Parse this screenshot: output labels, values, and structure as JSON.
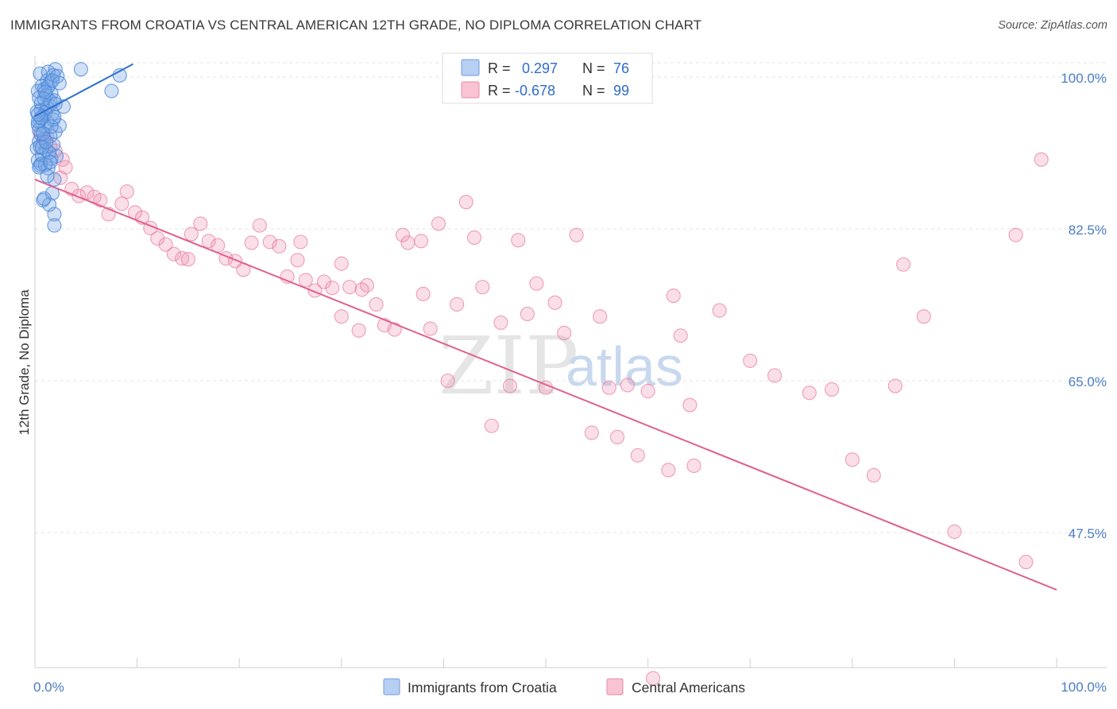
{
  "header": {
    "title": "IMMIGRANTS FROM CROATIA VS CENTRAL AMERICAN 12TH GRADE, NO DIPLOMA CORRELATION CHART",
    "source": "Source: ZipAtlas.com"
  },
  "watermark": {
    "zip": "ZIP",
    "atlas": "atlas"
  },
  "legend_top": {
    "rows": [
      {
        "r_label": "R =",
        "r_value": "0.297",
        "n_label": "N =",
        "n_value": "76"
      },
      {
        "r_label": "R =",
        "r_value": "-0.678",
        "n_label": "N =",
        "n_value": "99"
      }
    ]
  },
  "chart_data": {
    "type": "scatter",
    "ylabel": "12th Grade, No Diploma",
    "x_tick_labels": [
      "0.0%",
      "100.0%"
    ],
    "y_tick_labels": [
      "100.0%",
      "82.5%",
      "65.0%",
      "47.5%"
    ],
    "y_ticks": [
      100.0,
      82.5,
      65.0,
      47.5
    ],
    "xlim": [
      0,
      100
    ],
    "ylim": [
      30,
      100
    ],
    "grid": true,
    "legend_position": "bottom-center",
    "colors": {
      "croatia": "#4a86d8",
      "central": "#e9779e",
      "croatia_fill": "rgba(120,165,230,0.35)",
      "central_fill": "rgba(240,150,180,0.30)"
    },
    "series": [
      {
        "name": "Immigrants from Croatia",
        "r": 0.297,
        "n": 76,
        "trend": {
          "x": [
            0,
            9.6
          ],
          "y": [
            95.5,
            101.5
          ]
        },
        "points": [
          [
            0.5,
            100.4
          ],
          [
            1.3,
            100.6
          ],
          [
            2.0,
            100.9
          ],
          [
            4.5,
            100.9
          ],
          [
            1.2,
            99.6
          ],
          [
            1.8,
            100.2
          ],
          [
            0.7,
            99.0
          ],
          [
            1.5,
            99.3
          ],
          [
            2.2,
            100.1
          ],
          [
            0.3,
            98.4
          ],
          [
            0.9,
            98.6
          ],
          [
            1.6,
            98.1
          ],
          [
            0.4,
            97.6
          ],
          [
            1.1,
            97.9
          ],
          [
            1.9,
            97.3
          ],
          [
            2.8,
            96.6
          ],
          [
            0.6,
            96.2
          ],
          [
            1.4,
            96.7
          ],
          [
            0.2,
            96.0
          ],
          [
            0.8,
            95.5
          ],
          [
            1.7,
            95.8
          ],
          [
            0.5,
            95.0
          ],
          [
            1.2,
            94.8
          ],
          [
            0.3,
            94.5
          ],
          [
            1.0,
            94.2
          ],
          [
            2.0,
            93.7
          ],
          [
            0.6,
            93.4
          ],
          [
            1.5,
            93.2
          ],
          [
            0.4,
            92.6
          ],
          [
            0.9,
            92.9
          ],
          [
            1.8,
            92.2
          ],
          [
            0.2,
            91.8
          ],
          [
            1.1,
            91.6
          ],
          [
            0.7,
            91.0
          ],
          [
            1.6,
            90.6
          ],
          [
            0.3,
            90.4
          ],
          [
            2.1,
            90.9
          ],
          [
            0.5,
            89.8
          ],
          [
            1.3,
            89.5
          ],
          [
            8.3,
            100.2
          ],
          [
            1.9,
            88.2
          ],
          [
            1.7,
            86.6
          ],
          [
            0.8,
            85.8
          ],
          [
            1.4,
            85.3
          ],
          [
            1.9,
            84.2
          ],
          [
            1.9,
            82.9
          ],
          [
            7.5,
            98.4
          ],
          [
            0.6,
            97.0
          ],
          [
            1.0,
            95.9
          ],
          [
            0.4,
            93.9
          ],
          [
            1.4,
            91.3
          ],
          [
            0.6,
            90.0
          ],
          [
            1.2,
            96.5
          ],
          [
            0.3,
            94.9
          ],
          [
            1.8,
            95.1
          ],
          [
            0.9,
            97.5
          ],
          [
            2.4,
            94.4
          ],
          [
            0.5,
            92.0
          ],
          [
            1.0,
            89.9
          ],
          [
            1.5,
            97.2
          ],
          [
            0.7,
            91.9
          ],
          [
            0.4,
            89.6
          ],
          [
            0.9,
            86.0
          ],
          [
            1.3,
            98.9
          ],
          [
            1.7,
            99.6
          ],
          [
            2.4,
            99.3
          ],
          [
            1.1,
            92.5
          ],
          [
            0.6,
            95.3
          ],
          [
            1.6,
            94.3
          ],
          [
            2.0,
            96.9
          ],
          [
            1.2,
            88.6
          ],
          [
            0.8,
            93.5
          ],
          [
            1.5,
            90.2
          ],
          [
            0.3,
            95.7
          ],
          [
            1.0,
            98.3
          ],
          [
            1.9,
            95.4
          ]
        ]
      },
      {
        "name": "Central Americans",
        "r": -0.678,
        "n": 99,
        "trend": {
          "x": [
            0,
            100
          ],
          "y": [
            88.2,
            40.9
          ]
        },
        "points": [
          [
            0.5,
            93.5
          ],
          [
            1.2,
            93.0
          ],
          [
            2.0,
            91.5
          ],
          [
            2.7,
            90.5
          ],
          [
            3.0,
            89.6
          ],
          [
            1.5,
            92.0
          ],
          [
            0.8,
            92.6
          ],
          [
            2.5,
            88.4
          ],
          [
            3.6,
            87.1
          ],
          [
            4.3,
            86.3
          ],
          [
            5.1,
            86.7
          ],
          [
            5.8,
            86.2
          ],
          [
            6.4,
            85.8
          ],
          [
            7.2,
            84.2
          ],
          [
            8.5,
            85.4
          ],
          [
            9.0,
            86.8
          ],
          [
            9.8,
            84.4
          ],
          [
            10.5,
            83.8
          ],
          [
            11.3,
            82.6
          ],
          [
            12.0,
            81.4
          ],
          [
            12.8,
            80.7
          ],
          [
            13.6,
            79.6
          ],
          [
            14.4,
            79.1
          ],
          [
            15.3,
            81.9
          ],
          [
            16.2,
            83.1
          ],
          [
            17.0,
            81.1
          ],
          [
            17.9,
            80.6
          ],
          [
            18.7,
            79.1
          ],
          [
            19.6,
            78.8
          ],
          [
            20.4,
            77.8
          ],
          [
            21.2,
            80.9
          ],
          [
            22.0,
            82.9
          ],
          [
            23.0,
            81.0
          ],
          [
            23.9,
            80.5
          ],
          [
            24.7,
            77.0
          ],
          [
            25.7,
            78.9
          ],
          [
            26.5,
            76.6
          ],
          [
            27.4,
            75.4
          ],
          [
            28.3,
            76.4
          ],
          [
            29.1,
            75.7
          ],
          [
            30.0,
            72.4
          ],
          [
            30.8,
            75.8
          ],
          [
            31.7,
            70.8
          ],
          [
            32.5,
            76.0
          ],
          [
            33.4,
            73.8
          ],
          [
            34.2,
            71.4
          ],
          [
            35.2,
            70.9
          ],
          [
            36.0,
            81.8
          ],
          [
            37.8,
            81.1
          ],
          [
            38.7,
            71.0
          ],
          [
            39.5,
            83.1
          ],
          [
            40.4,
            65.0
          ],
          [
            41.3,
            73.8
          ],
          [
            42.2,
            85.6
          ],
          [
            43.0,
            81.5
          ],
          [
            43.8,
            75.8
          ],
          [
            44.7,
            59.8
          ],
          [
            45.6,
            71.7
          ],
          [
            46.5,
            64.4
          ],
          [
            47.3,
            81.2
          ],
          [
            48.2,
            72.7
          ],
          [
            49.1,
            76.2
          ],
          [
            50.0,
            64.2
          ],
          [
            50.9,
            74.0
          ],
          [
            51.8,
            70.5
          ],
          [
            53.0,
            81.8
          ],
          [
            54.5,
            59.0
          ],
          [
            55.3,
            72.4
          ],
          [
            56.2,
            64.2
          ],
          [
            58.0,
            64.5
          ],
          [
            60.0,
            63.8
          ],
          [
            62.5,
            74.8
          ],
          [
            63.2,
            70.2
          ],
          [
            64.1,
            62.2
          ],
          [
            67.0,
            73.1
          ],
          [
            70.0,
            67.3
          ],
          [
            72.4,
            65.6
          ],
          [
            75.8,
            63.6
          ],
          [
            78.0,
            64.0
          ],
          [
            80.0,
            55.9
          ],
          [
            82.1,
            54.1
          ],
          [
            84.2,
            64.4
          ],
          [
            85.0,
            78.4
          ],
          [
            87.0,
            72.4
          ],
          [
            96.0,
            81.8
          ],
          [
            98.5,
            90.5
          ],
          [
            15.0,
            79.0
          ],
          [
            26.0,
            81.0
          ],
          [
            30.0,
            78.5
          ],
          [
            32.0,
            75.5
          ],
          [
            36.5,
            80.9
          ],
          [
            38.0,
            75.0
          ],
          [
            57.0,
            58.5
          ],
          [
            59.0,
            56.4
          ],
          [
            62.0,
            54.7
          ],
          [
            64.5,
            55.2
          ],
          [
            90.0,
            47.6
          ],
          [
            97.0,
            44.1
          ],
          [
            60.5,
            30.7
          ]
        ]
      }
    ],
    "bottom_legend": [
      "Immigrants from Croatia",
      "Central Americans"
    ]
  }
}
